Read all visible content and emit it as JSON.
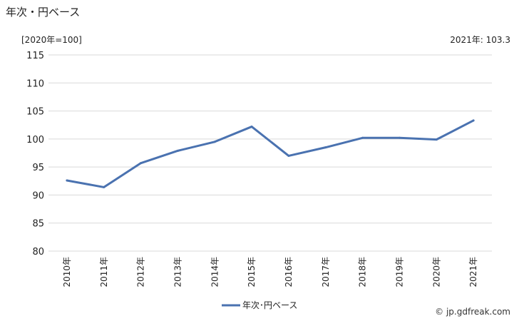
{
  "header": {
    "title": "年次・円ベース",
    "unit": "[2020年=100]",
    "latest": "2021年: 103.3"
  },
  "credit": "© jp.gdfreak.com",
  "chart_data": {
    "type": "line",
    "title": "年次・円ベース",
    "categories": [
      "2010年",
      "2011年",
      "2012年",
      "2013年",
      "2014年",
      "2015年",
      "2016年",
      "2017年",
      "2018年",
      "2019年",
      "2020年",
      "2021年"
    ],
    "series": [
      {
        "name": "年次･円ベース",
        "values": [
          92.6,
          91.4,
          95.7,
          97.9,
          99.5,
          102.2,
          97.0,
          98.5,
          100.2,
          100.2,
          99.9,
          103.3
        ],
        "color": "#4a72b0"
      }
    ],
    "ylim": [
      80,
      115
    ],
    "yticks": [
      80,
      85,
      90,
      95,
      100,
      105,
      110,
      115
    ],
    "grid": true,
    "legend": "bottom-center",
    "gridColor": "#d9d9d9"
  }
}
